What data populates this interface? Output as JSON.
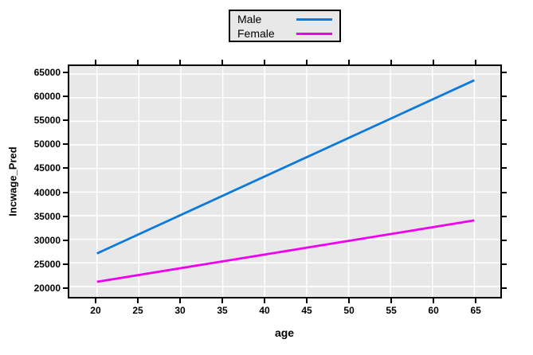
{
  "chart_data": {
    "type": "line",
    "title": "",
    "xlabel": "age",
    "ylabel": "Incwage_Pred",
    "x_ticks": [
      20,
      25,
      30,
      35,
      40,
      45,
      50,
      55,
      60,
      65
    ],
    "y_ticks": [
      20000,
      25000,
      30000,
      35000,
      40000,
      45000,
      50000,
      55000,
      60000,
      65000
    ],
    "xlim": [
      16.7,
      68.1
    ],
    "ylim": [
      17800,
      66700
    ],
    "grid": true,
    "plot_bg": "#e8e8e8",
    "grid_color": "#ffffff",
    "legend_position": "top-center-outside",
    "series": [
      {
        "name": "Male",
        "color": "#0e7ad8",
        "x": [
          20,
          65
        ],
        "y": [
          27000,
          63700
        ]
      },
      {
        "name": "Female",
        "color": "#ee00ee",
        "x": [
          20,
          65
        ],
        "y": [
          21000,
          34000
        ]
      }
    ]
  }
}
